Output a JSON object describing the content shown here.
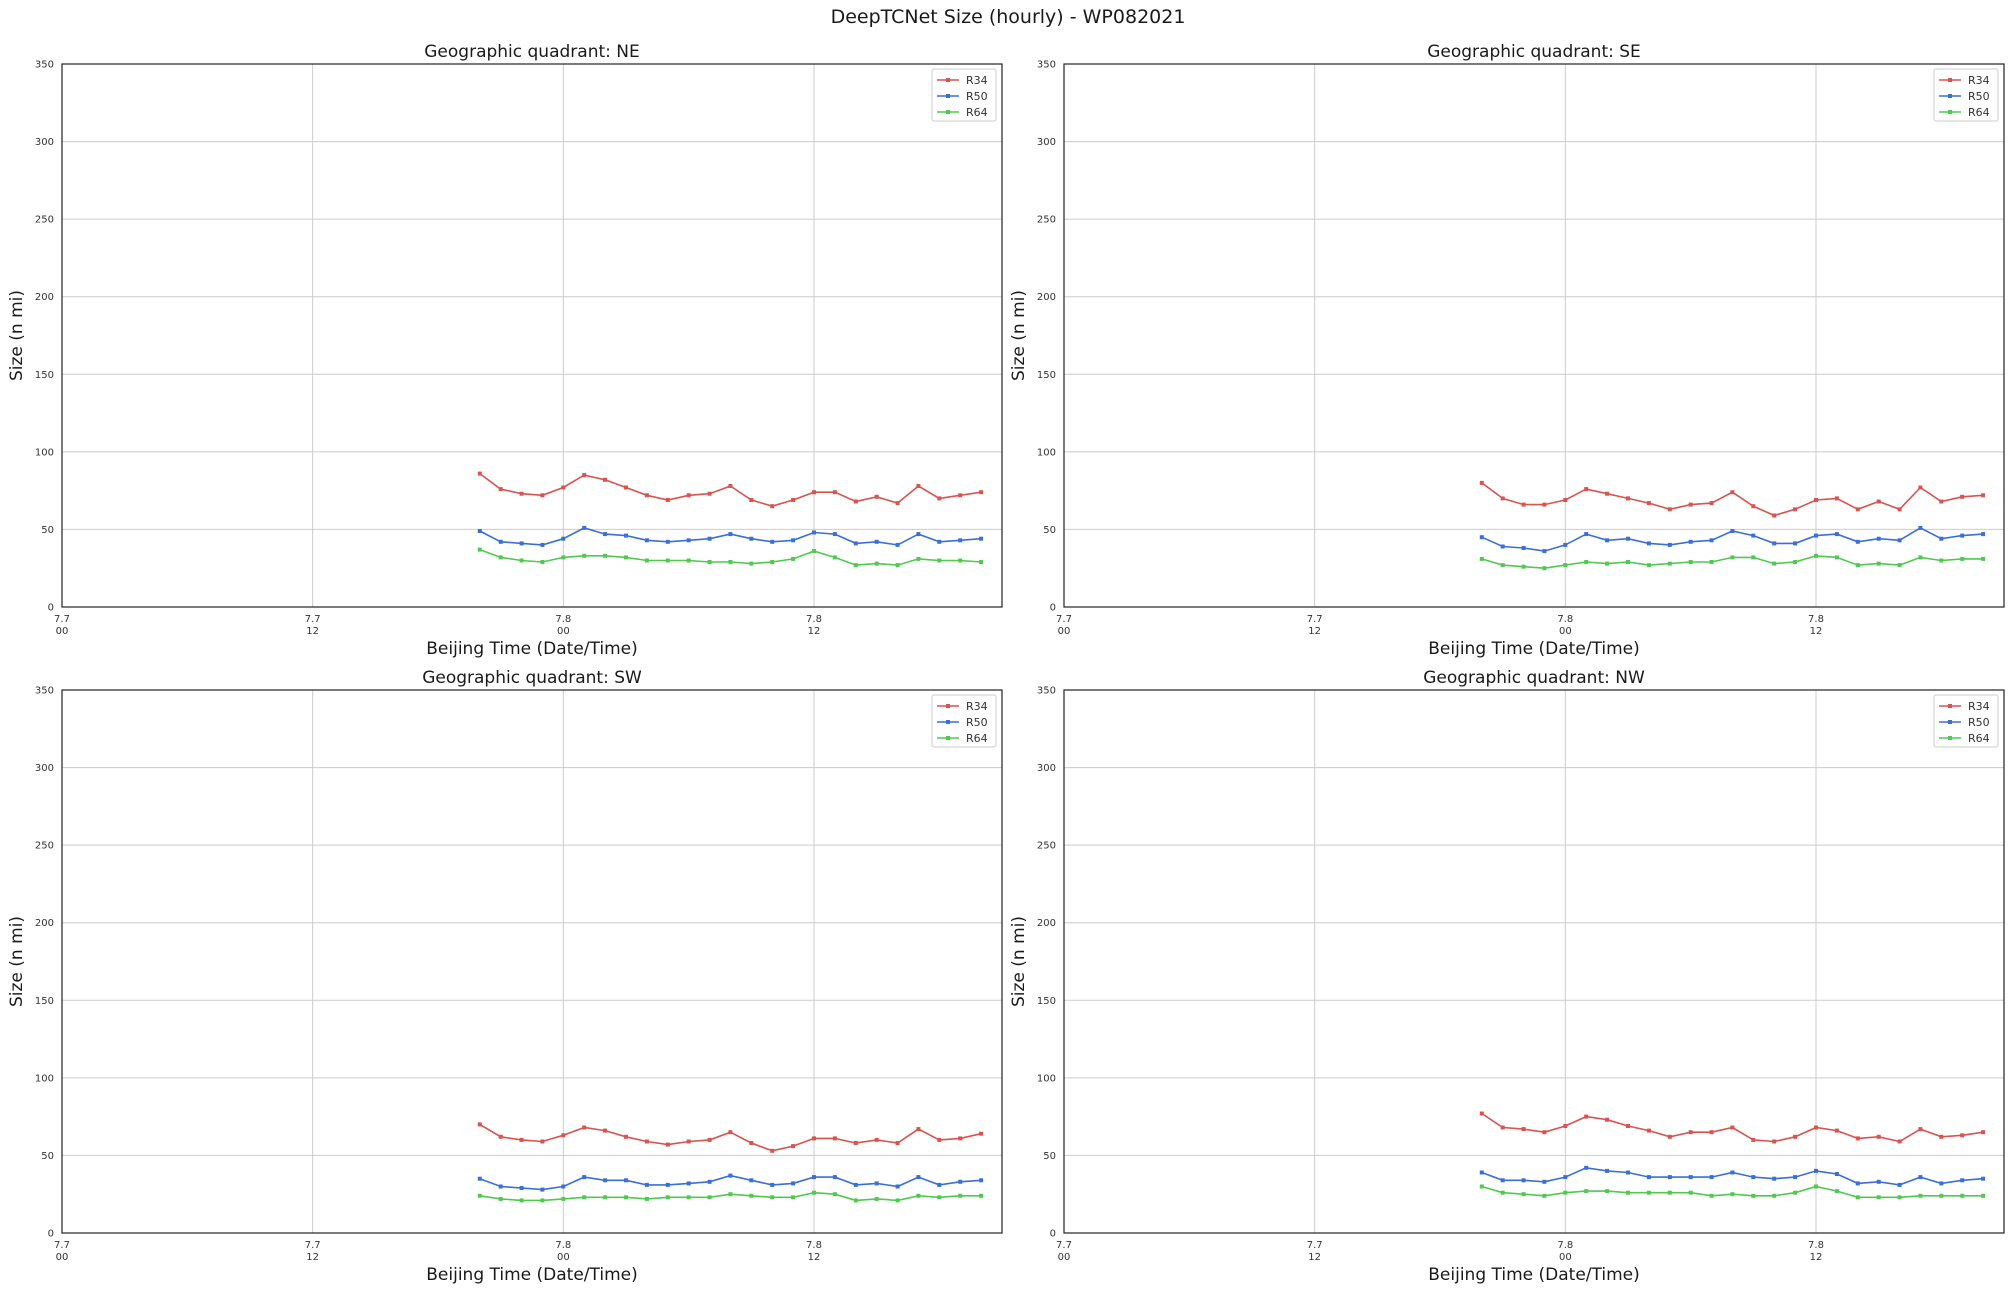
{
  "figure": {
    "title": "DeepTCNet Size (hourly) - WP082021"
  },
  "colors": {
    "R34": "#d9534f",
    "R50": "#3a6fd8",
    "R64": "#4fca4f",
    "grid": "#cccccc"
  },
  "chart_data": [
    {
      "type": "line",
      "title": "Geographic quadrant: NE",
      "xlabel": "Beijing Time (Date/Time)",
      "ylabel": "Size (n mi)",
      "ylim": [
        0,
        350
      ],
      "yticks": [
        "0",
        "50",
        "100",
        "150",
        "200",
        "250",
        "300",
        "350"
      ],
      "xlim_hours": [
        0,
        45
      ],
      "xticks": [
        {
          "date": "7.7",
          "time": "00"
        },
        {
          "date": "7.7",
          "time": "12"
        },
        {
          "date": "7.8",
          "time": "00"
        },
        {
          "date": "7.8",
          "time": "12"
        }
      ],
      "x_start_hour": 20,
      "grid": true,
      "legend": "top-right",
      "series": [
        {
          "name": "R34",
          "values": [
            86,
            76,
            73,
            72,
            77,
            85,
            82,
            77,
            72,
            69,
            72,
            73,
            78,
            69,
            65,
            69,
            74,
            74,
            68,
            71,
            67,
            78,
            70,
            72,
            74
          ]
        },
        {
          "name": "R50",
          "values": [
            49,
            42,
            41,
            40,
            44,
            51,
            47,
            46,
            43,
            42,
            43,
            44,
            47,
            44,
            42,
            43,
            48,
            47,
            41,
            42,
            40,
            47,
            42,
            43,
            44
          ]
        },
        {
          "name": "R64",
          "values": [
            37,
            32,
            30,
            29,
            32,
            33,
            33,
            32,
            30,
            30,
            30,
            29,
            29,
            28,
            29,
            31,
            36,
            32,
            27,
            28,
            27,
            31,
            30,
            30,
            29
          ]
        }
      ]
    },
    {
      "type": "line",
      "title": "Geographic quadrant: SE",
      "xlabel": "Beijing Time (Date/Time)",
      "ylabel": "Size (n mi)",
      "ylim": [
        0,
        350
      ],
      "yticks": [
        "0",
        "50",
        "100",
        "150",
        "200",
        "250",
        "300",
        "350"
      ],
      "xlim_hours": [
        0,
        45
      ],
      "xticks": [
        {
          "date": "7.7",
          "time": "00"
        },
        {
          "date": "7.7",
          "time": "12"
        },
        {
          "date": "7.8",
          "time": "00"
        },
        {
          "date": "7.8",
          "time": "12"
        }
      ],
      "x_start_hour": 20,
      "grid": true,
      "legend": "top-right",
      "series": [
        {
          "name": "R34",
          "values": [
            80,
            70,
            66,
            66,
            69,
            76,
            73,
            70,
            67,
            63,
            66,
            67,
            74,
            65,
            59,
            63,
            69,
            70,
            63,
            68,
            63,
            77,
            68,
            71,
            72
          ]
        },
        {
          "name": "R50",
          "values": [
            45,
            39,
            38,
            36,
            40,
            47,
            43,
            44,
            41,
            40,
            42,
            43,
            49,
            46,
            41,
            41,
            46,
            47,
            42,
            44,
            43,
            51,
            44,
            46,
            47
          ]
        },
        {
          "name": "R64",
          "values": [
            31,
            27,
            26,
            25,
            27,
            29,
            28,
            29,
            27,
            28,
            29,
            29,
            32,
            32,
            28,
            29,
            33,
            32,
            27,
            28,
            27,
            32,
            30,
            31,
            31
          ]
        }
      ]
    },
    {
      "type": "line",
      "title": "Geographic quadrant: SW",
      "xlabel": "Beijing Time (Date/Time)",
      "ylabel": "Size (n mi)",
      "ylim": [
        0,
        350
      ],
      "yticks": [
        "0",
        "50",
        "100",
        "150",
        "200",
        "250",
        "300",
        "350"
      ],
      "xlim_hours": [
        0,
        45
      ],
      "xticks": [
        {
          "date": "7.7",
          "time": "00"
        },
        {
          "date": "7.7",
          "time": "12"
        },
        {
          "date": "7.8",
          "time": "00"
        },
        {
          "date": "7.8",
          "time": "12"
        }
      ],
      "x_start_hour": 20,
      "grid": true,
      "legend": "top-right",
      "series": [
        {
          "name": "R34",
          "values": [
            70,
            62,
            60,
            59,
            63,
            68,
            66,
            62,
            59,
            57,
            59,
            60,
            65,
            58,
            53,
            56,
            61,
            61,
            58,
            60,
            58,
            67,
            60,
            61,
            64
          ]
        },
        {
          "name": "R50",
          "values": [
            35,
            30,
            29,
            28,
            30,
            36,
            34,
            34,
            31,
            31,
            32,
            33,
            37,
            34,
            31,
            32,
            36,
            36,
            31,
            32,
            30,
            36,
            31,
            33,
            34
          ]
        },
        {
          "name": "R64",
          "values": [
            24,
            22,
            21,
            21,
            22,
            23,
            23,
            23,
            22,
            23,
            23,
            23,
            25,
            24,
            23,
            23,
            26,
            25,
            21,
            22,
            21,
            24,
            23,
            24,
            24
          ]
        }
      ]
    },
    {
      "type": "line",
      "title": "Geographic quadrant: NW",
      "xlabel": "Beijing Time (Date/Time)",
      "ylabel": "Size (n mi)",
      "ylim": [
        0,
        350
      ],
      "yticks": [
        "0",
        "50",
        "100",
        "150",
        "200",
        "250",
        "300",
        "350"
      ],
      "xlim_hours": [
        0,
        45
      ],
      "xticks": [
        {
          "date": "7.7",
          "time": "00"
        },
        {
          "date": "7.7",
          "time": "12"
        },
        {
          "date": "7.8",
          "time": "00"
        },
        {
          "date": "7.8",
          "time": "12"
        }
      ],
      "x_start_hour": 20,
      "grid": true,
      "legend": "top-right",
      "series": [
        {
          "name": "R34",
          "values": [
            77,
            68,
            67,
            65,
            69,
            75,
            73,
            69,
            66,
            62,
            65,
            65,
            68,
            60,
            59,
            62,
            68,
            66,
            61,
            62,
            59,
            67,
            62,
            63,
            65
          ]
        },
        {
          "name": "R50",
          "values": [
            39,
            34,
            34,
            33,
            36,
            42,
            40,
            39,
            36,
            36,
            36,
            36,
            39,
            36,
            35,
            36,
            40,
            38,
            32,
            33,
            31,
            36,
            32,
            34,
            35
          ]
        },
        {
          "name": "R64",
          "values": [
            30,
            26,
            25,
            24,
            26,
            27,
            27,
            26,
            26,
            26,
            26,
            24,
            25,
            24,
            24,
            26,
            30,
            27,
            23,
            23,
            23,
            24,
            24,
            24,
            24
          ]
        }
      ]
    }
  ]
}
